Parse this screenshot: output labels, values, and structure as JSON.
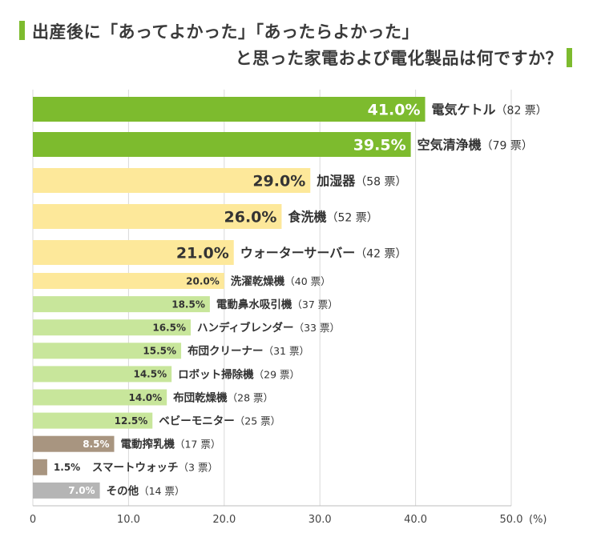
{
  "title": {
    "line1": "出産後に「あってよかった」「あったらよかった」",
    "line2": "と思った家電および電化製品は何ですか？"
  },
  "colors": {
    "top": "#7dbb2e",
    "mid": "#fde89a",
    "low": "#c8e69b",
    "baby": "#a89580",
    "other": "#b5b5b5",
    "title_mark": "#7dbb2e"
  },
  "chart_data": {
    "type": "bar",
    "orientation": "horizontal",
    "xlim": [
      0,
      50
    ],
    "x_unit": "(%)",
    "ticks": [
      "0",
      "10.0",
      "20.0",
      "30.0",
      "40.0",
      "50.0"
    ],
    "tick_values": [
      0,
      10,
      20,
      30,
      40,
      50
    ],
    "vertical_gridlines": true,
    "bars": [
      {
        "name": "電気ケトル",
        "value": 41.0,
        "label": "41.0%",
        "votes": "（82 票）",
        "group": "top"
      },
      {
        "name": "空気清浄機",
        "value": 39.5,
        "label": "39.5%",
        "votes": "（79 票）",
        "group": "top"
      },
      {
        "name": "加湿器",
        "value": 29.0,
        "label": "29.0%",
        "votes": "（58 票）",
        "group": "mid"
      },
      {
        "name": "食洗機",
        "value": 26.0,
        "label": "26.0%",
        "votes": "（52 票）",
        "group": "mid"
      },
      {
        "name": "ウォーターサーバー",
        "value": 21.0,
        "label": "21.0%",
        "votes": "（42 票）",
        "group": "mid"
      },
      {
        "name": "洗濯乾燥機",
        "value": 20.0,
        "label": "20.0%",
        "votes": "（40 票）",
        "group": "mid"
      },
      {
        "name": "電動鼻水吸引機",
        "value": 18.5,
        "label": "18.5%",
        "votes": "（37 票）",
        "group": "low"
      },
      {
        "name": "ハンディブレンダー",
        "value": 16.5,
        "label": "16.5%",
        "votes": "（33 票）",
        "group": "low"
      },
      {
        "name": "布団クリーナー",
        "value": 15.5,
        "label": "15.5%",
        "votes": "（31 票）",
        "group": "low"
      },
      {
        "name": "ロボット掃除機",
        "value": 14.5,
        "label": "14.5%",
        "votes": "（29 票）",
        "group": "low"
      },
      {
        "name": "布団乾燥機",
        "value": 14.0,
        "label": "14.0%",
        "votes": "（28 票）",
        "group": "low"
      },
      {
        "name": "ベビーモニター",
        "value": 12.5,
        "label": "12.5%",
        "votes": "（25 票）",
        "group": "low"
      },
      {
        "name": "電動搾乳機",
        "value": 8.5,
        "label": "8.5%",
        "votes": "（17 票）",
        "group": "baby"
      },
      {
        "name": "スマートウォッチ",
        "value": 1.5,
        "label": "1.5%",
        "votes": "（3 票）",
        "group": "baby"
      },
      {
        "name": "その他",
        "value": 7.0,
        "label": "7.0%",
        "votes": "（14 票）",
        "group": "other"
      }
    ]
  }
}
